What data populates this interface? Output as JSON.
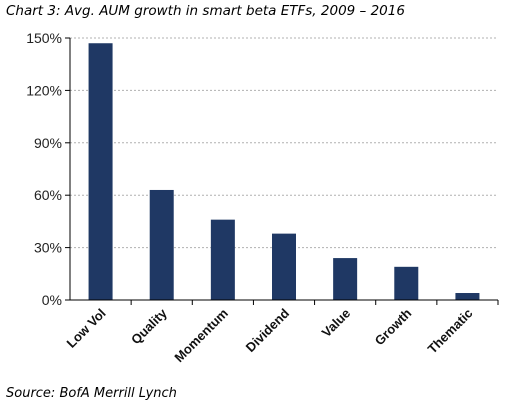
{
  "chart_data": {
    "type": "bar",
    "title": "Chart 3: Avg. AUM growth in smart beta ETFs, 2009 – 2016",
    "source": "Source: BofA Merrill Lynch",
    "categories": [
      "Low Vol",
      "Quality",
      "Momentum",
      "Dividend",
      "Value",
      "Growth",
      "Thematic"
    ],
    "values": [
      147,
      63,
      46,
      38,
      24,
      19,
      4
    ],
    "yticks": [
      "0%",
      "30%",
      "60%",
      "90%",
      "120%",
      "150%"
    ],
    "ylim": [
      0,
      150
    ],
    "grid": true,
    "bar_color": "#1f3864",
    "grid_color": "#b0b0b0",
    "legend": false
  }
}
